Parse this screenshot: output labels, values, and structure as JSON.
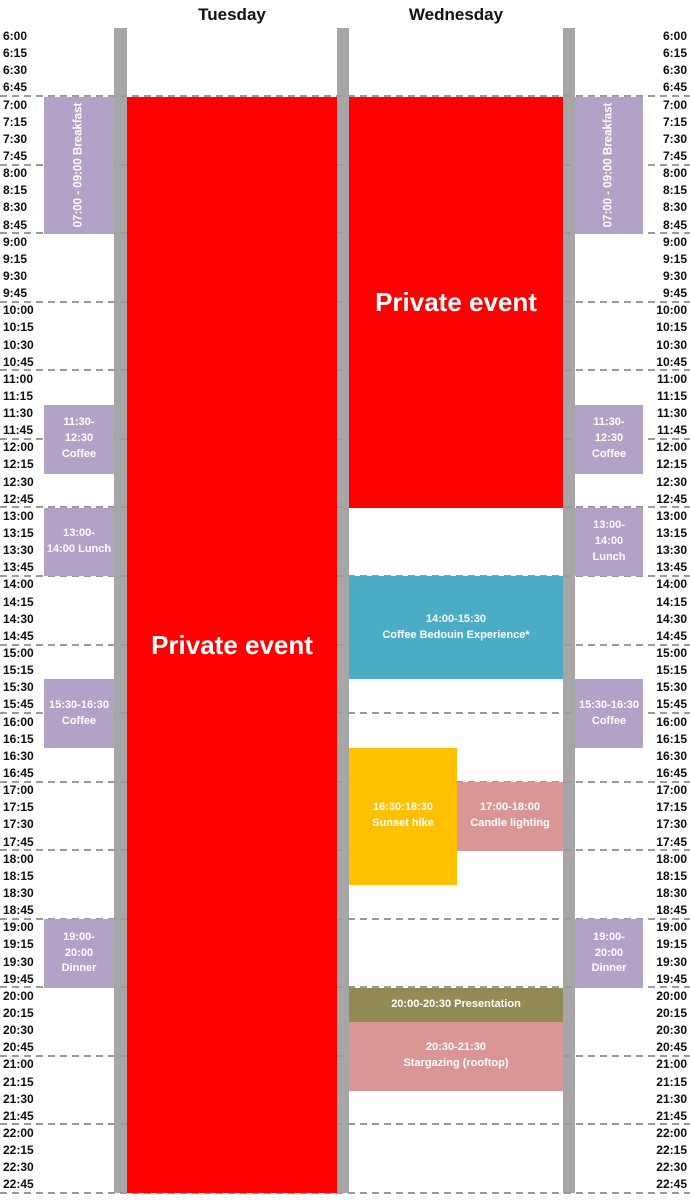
{
  "header": {
    "days": [
      "Tuesday",
      "Wednesday"
    ]
  },
  "grid": {
    "times": [
      "6:00",
      "6:15",
      "6:30",
      "6:45",
      "7:00",
      "7:15",
      "7:30",
      "7:45",
      "8:00",
      "8:15",
      "8:30",
      "8:45",
      "9:00",
      "9:15",
      "9:30",
      "9:45",
      "10:00",
      "10:15",
      "10:30",
      "10:45",
      "11:00",
      "11:15",
      "11:30",
      "11:45",
      "12:00",
      "12:15",
      "12:30",
      "12:45",
      "13:00",
      "13:15",
      "13:30",
      "13:45",
      "14:00",
      "14:15",
      "14:30",
      "14:45",
      "15:00",
      "15:15",
      "15:30",
      "15:45",
      "16:00",
      "16:15",
      "16:30",
      "16:45",
      "17:00",
      "17:15",
      "17:30",
      "17:45",
      "18:00",
      "18:15",
      "18:30",
      "18:45",
      "19:00",
      "19:15",
      "19:30",
      "19:45",
      "20:00",
      "20:15",
      "20:30",
      "20:45",
      "21:00",
      "21:15",
      "21:30",
      "21:45",
      "22:00",
      "22:15",
      "22:30",
      "22:45"
    ]
  },
  "colors": {
    "red": "#FF0000",
    "purple": "#B3A2C7",
    "teal": "#4BACC6",
    "yellow": "#FFC000",
    "pink": "#D99694",
    "olive": "#948A54",
    "divider": "#A6A6A6",
    "gridline": "#9B9B9B"
  },
  "side_lane_events": [
    {
      "name": "breakfast",
      "start": "7:00",
      "end": "9:00",
      "label": "07:00 - 09:00 Breakfast",
      "color": "purple",
      "vertical": true
    },
    {
      "name": "coffee-morning",
      "start": "11:30",
      "end": "12:30",
      "label": "11:30-\n12:30\nCoffee",
      "color": "purple"
    },
    {
      "name": "lunch",
      "start": "13:00",
      "end": "14:00",
      "label": "13:00-\n14:00 Lunch",
      "color": "purple"
    },
    {
      "name": "coffee-afternoon",
      "start": "15:30",
      "end": "16:30",
      "label": "15:30-16:30\nCoffee",
      "color": "purple"
    },
    {
      "name": "dinner",
      "start": "19:00",
      "end": "20:00",
      "label": "19:00-\n20:00\nDinner",
      "color": "purple"
    }
  ],
  "day_events": {
    "tuesday": [
      {
        "name": "private-event-tuesday",
        "start": "7:00",
        "end": "23:00",
        "label": "Private event",
        "color": "red",
        "big_label": true
      }
    ],
    "wednesday": [
      {
        "name": "private-event-wednesday",
        "start": "7:00",
        "end": "13:00",
        "label": "Private event",
        "color": "red",
        "big_label": true
      },
      {
        "name": "coffee-bedouin-experience",
        "start": "14:00",
        "end": "15:30",
        "label": "14:00-15:30\nCoffee Bedouin Experience*",
        "color": "teal"
      },
      {
        "name": "sunset-hike",
        "start": "16:30",
        "end": "18:30",
        "label": "16:30:18:30\nSunset hike",
        "color": "yellow",
        "col": "left"
      },
      {
        "name": "candle-lighting",
        "start": "17:00",
        "end": "18:00",
        "label": "17:00-18:00\nCandle lighting",
        "color": "pink",
        "col": "right"
      },
      {
        "name": "presentation",
        "start": "20:00",
        "end": "20:30",
        "label": "20:00-20:30 Presentation",
        "color": "olive"
      },
      {
        "name": "stargazing",
        "start": "20:30",
        "end": "21:30",
        "label": "20:30-21:30\nStargazing (rooftop)",
        "color": "pink"
      }
    ]
  }
}
